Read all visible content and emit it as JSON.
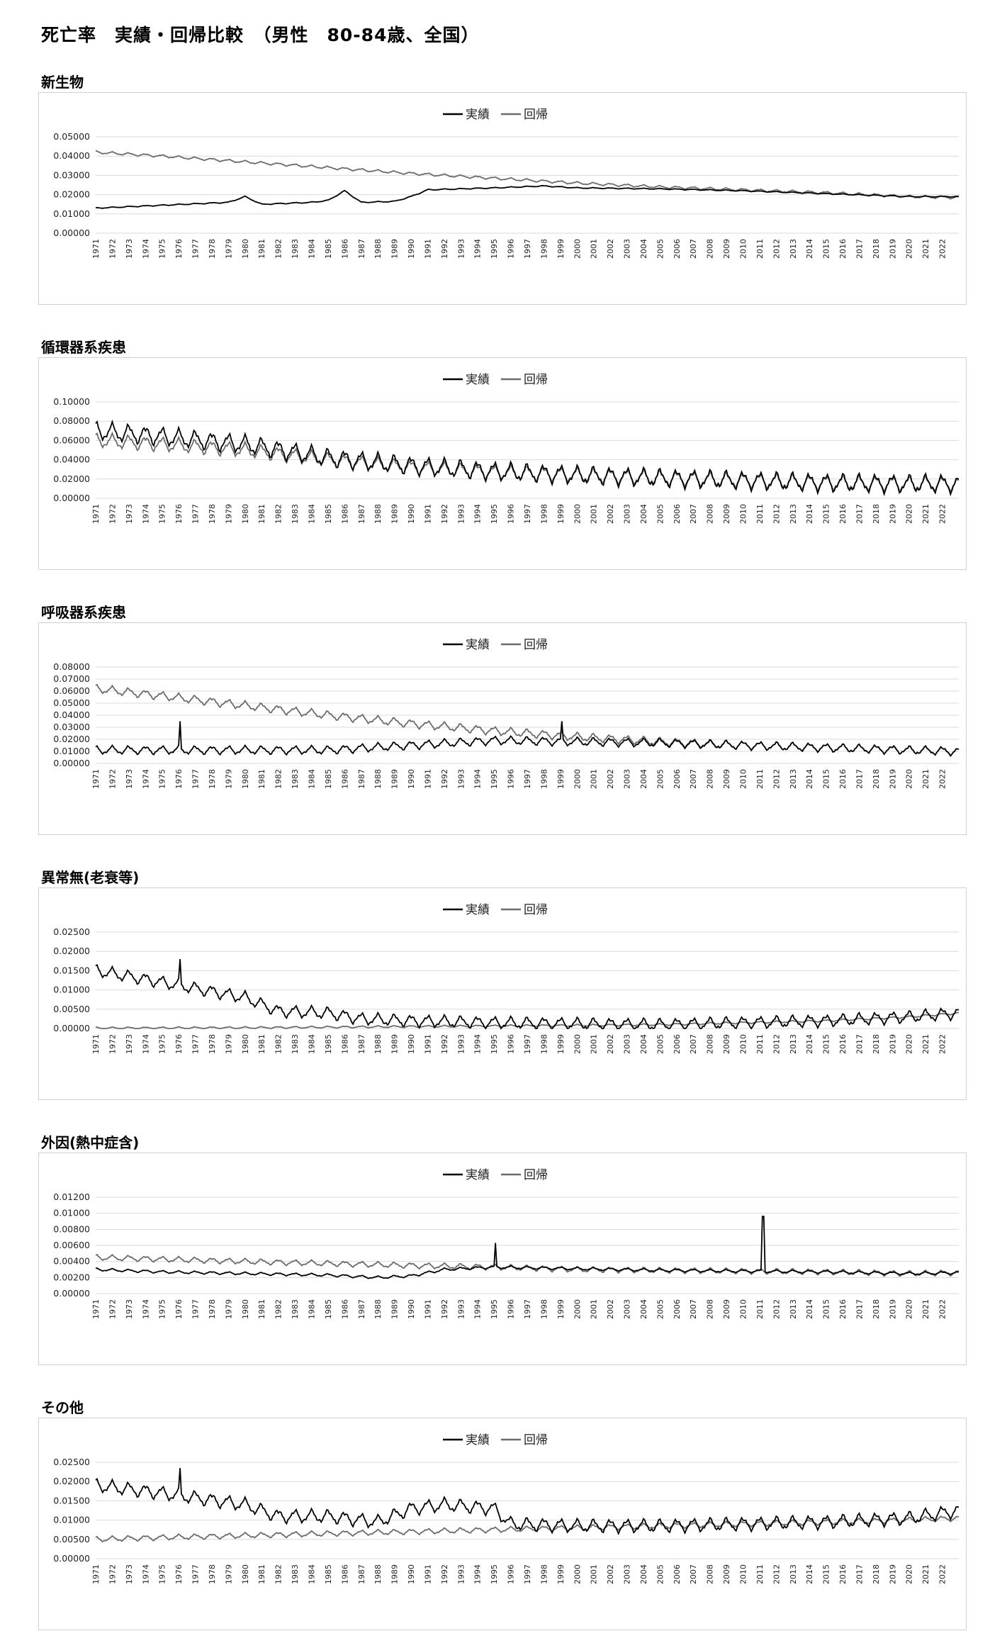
{
  "title": "死亡率　実績・回帰比較　（男性　80-84歳、全国）",
  "legend": {
    "actual": "実績",
    "regression": "回帰"
  },
  "colors": {
    "actual": "#000000",
    "regression": "#6b6b6b",
    "grid": "#d9d9d9"
  },
  "x_years": [
    "1971",
    "1972",
    "1973",
    "1974",
    "1975",
    "1976",
    "1977",
    "1978",
    "1979",
    "1980",
    "1981",
    "1982",
    "1983",
    "1984",
    "1985",
    "1986",
    "1987",
    "1988",
    "1989",
    "1990",
    "1991",
    "1992",
    "1993",
    "1994",
    "1995",
    "1996",
    "1997",
    "1998",
    "1999",
    "2000",
    "2001",
    "2002",
    "2003",
    "2004",
    "2005",
    "2006",
    "2007",
    "2008",
    "2009",
    "2010",
    "2011",
    "2012",
    "2013",
    "2014",
    "2015",
    "2016",
    "2017",
    "2018",
    "2019",
    "2020",
    "2021",
    "2022"
  ],
  "chart_data": [
    {
      "type": "line",
      "title": "新生物",
      "y_ticks": [
        "0.00000",
        "0.01000",
        "0.02000",
        "0.03000",
        "0.04000",
        "0.05000"
      ],
      "ylim": [
        0,
        0.05
      ],
      "seasonal_amp": {
        "actual": 0.0003,
        "regression": 0.0008
      },
      "spikes": [],
      "series": [
        {
          "name": "実績",
          "x": [
            1971,
            1975,
            1979,
            1980,
            1981,
            1984,
            1985,
            1986,
            1987,
            1989,
            1990,
            1991,
            1995,
            1998,
            2000,
            2005,
            2010,
            2015,
            2020,
            2023
          ],
          "values": [
            0.013,
            0.0145,
            0.016,
            0.019,
            0.015,
            0.016,
            0.017,
            0.022,
            0.016,
            0.0165,
            0.019,
            0.0225,
            0.0235,
            0.0245,
            0.0235,
            0.023,
            0.022,
            0.0205,
            0.019,
            0.019
          ]
        },
        {
          "name": "回帰",
          "x": [
            1971,
            1975,
            1980,
            1985,
            1990,
            1995,
            2000,
            2005,
            2010,
            2015,
            2020,
            2023
          ],
          "values": [
            0.042,
            0.04,
            0.037,
            0.034,
            0.031,
            0.0285,
            0.026,
            0.024,
            0.0225,
            0.021,
            0.019,
            0.0185
          ]
        }
      ]
    },
    {
      "type": "line",
      "title": "循環器系疾患",
      "y_ticks": [
        "0.00000",
        "0.02000",
        "0.04000",
        "0.06000",
        "0.08000",
        "0.10000"
      ],
      "ylim": [
        0,
        0.1
      ],
      "seasonal_amp": {
        "actual": 0.011,
        "regression": 0.0085
      },
      "spikes": [],
      "series": [
        {
          "name": "実績",
          "x": [
            1971,
            1975,
            1980,
            1985,
            1990,
            1995,
            2000,
            2005,
            2010,
            2015,
            2020,
            2023
          ],
          "values": [
            0.07,
            0.064,
            0.056,
            0.042,
            0.034,
            0.028,
            0.024,
            0.021,
            0.0185,
            0.016,
            0.015,
            0.015
          ]
        },
        {
          "name": "回帰",
          "x": [
            1971,
            1975,
            1980,
            1985,
            1990,
            1995,
            2000,
            2005,
            2010,
            2015,
            2020,
            2023
          ],
          "values": [
            0.06,
            0.056,
            0.05,
            0.04,
            0.032,
            0.027,
            0.024,
            0.021,
            0.0185,
            0.016,
            0.015,
            0.015
          ]
        }
      ]
    },
    {
      "type": "line",
      "title": "呼吸器系疾患",
      "y_ticks": [
        "0.00000",
        "0.01000",
        "0.02000",
        "0.03000",
        "0.04000",
        "0.05000",
        "0.06000",
        "0.07000",
        "0.08000"
      ],
      "ylim": [
        0,
        0.08
      ],
      "seasonal_amp": {
        "actual": 0.004,
        "regression": 0.004
      },
      "spikes": [
        {
          "series": 0,
          "year": 1976.1,
          "value": 0.035
        },
        {
          "series": 0,
          "year": 1999.1,
          "value": 0.035
        }
      ],
      "series": [
        {
          "name": "実績",
          "x": [
            1971,
            1980,
            1985,
            1990,
            1995,
            2000,
            2005,
            2010,
            2015,
            2020,
            2023
          ],
          "values": [
            0.011,
            0.011,
            0.011,
            0.015,
            0.019,
            0.018,
            0.017,
            0.015,
            0.013,
            0.011,
            0.01
          ]
        },
        {
          "name": "回帰",
          "x": [
            1971,
            1975,
            1980,
            1985,
            1990,
            1995,
            2000,
            2005,
            2010,
            2015,
            2020,
            2023
          ],
          "values": [
            0.062,
            0.056,
            0.048,
            0.04,
            0.033,
            0.027,
            0.022,
            0.018,
            0.015,
            0.013,
            0.011,
            0.01
          ]
        }
      ]
    },
    {
      "type": "line",
      "title": "異常無(老衰等)",
      "y_ticks": [
        "0.00000",
        "0.00500",
        "0.01000",
        "0.01500",
        "0.02000",
        "0.02500"
      ],
      "ylim": [
        0,
        0.025
      ],
      "seasonal_amp": {
        "actual": 0.0018,
        "regression": 0.0003
      },
      "spikes": [
        {
          "series": 0,
          "year": 1976.1,
          "value": 0.018
        }
      ],
      "series": [
        {
          "name": "実績",
          "x": [
            1971,
            1975,
            1980,
            1982,
            1985,
            1987,
            1990,
            1995,
            2000,
            2005,
            2010,
            2015,
            2020,
            2023
          ],
          "values": [
            0.015,
            0.012,
            0.008,
            0.0045,
            0.004,
            0.0025,
            0.002,
            0.0015,
            0.0012,
            0.001,
            0.0015,
            0.002,
            0.003,
            0.004
          ]
        },
        {
          "name": "回帰",
          "x": [
            1971,
            1980,
            1990,
            2000,
            2005,
            2010,
            2015,
            2020,
            2023
          ],
          "values": [
            0.0001,
            0.0002,
            0.0005,
            0.0008,
            0.001,
            0.0015,
            0.002,
            0.003,
            0.004
          ]
        }
      ]
    },
    {
      "type": "line",
      "title": "外因(熱中症含)",
      "y_ticks": [
        "0.00000",
        "0.00200",
        "0.00400",
        "0.00600",
        "0.00800",
        "0.01000",
        "0.01200"
      ],
      "ylim": [
        0,
        0.012
      ],
      "seasonal_amp": {
        "actual": 0.0002,
        "regression": 0.0004
      },
      "spikes": [
        {
          "series": 0,
          "year": 1995.1,
          "value": 0.0063
        },
        {
          "series": 0,
          "year": 2011.2,
          "value": 0.0096
        }
      ],
      "series": [
        {
          "name": "実績",
          "x": [
            1971,
            1975,
            1980,
            1985,
            1988,
            1990,
            1992,
            1995,
            2000,
            2005,
            2010,
            2015,
            2020,
            2023
          ],
          "values": [
            0.003,
            0.0027,
            0.0025,
            0.0023,
            0.002,
            0.0022,
            0.003,
            0.0033,
            0.0031,
            0.0029,
            0.0028,
            0.0027,
            0.0025,
            0.0026
          ]
        },
        {
          "name": "回帰",
          "x": [
            1971,
            1980,
            1990,
            1995,
            2000,
            2005,
            2010,
            2015,
            2020,
            2023
          ],
          "values": [
            0.0045,
            0.004,
            0.0035,
            0.0033,
            0.003,
            0.0029,
            0.0028,
            0.0027,
            0.0025,
            0.0026
          ]
        }
      ]
    },
    {
      "type": "line",
      "title": "その他",
      "y_ticks": [
        "0.00000",
        "0.00500",
        "0.01000",
        "0.01500",
        "0.02000",
        "0.02500"
      ],
      "ylim": [
        0,
        0.025
      ],
      "seasonal_amp": {
        "actual": 0.002,
        "regression": 0.0008
      },
      "spikes": [
        {
          "series": 0,
          "year": 1976.1,
          "value": 0.0235
        }
      ],
      "series": [
        {
          "name": "実績",
          "x": [
            1971,
            1975,
            1980,
            1982,
            1985,
            1988,
            1990,
            1992,
            1995,
            1996,
            2000,
            2005,
            2010,
            2015,
            2020,
            2023
          ],
          "values": [
            0.019,
            0.017,
            0.014,
            0.011,
            0.011,
            0.0095,
            0.013,
            0.014,
            0.013,
            0.009,
            0.0085,
            0.0085,
            0.009,
            0.0095,
            0.0105,
            0.0125
          ]
        },
        {
          "name": "回帰",
          "x": [
            1971,
            1975,
            1980,
            1985,
            1990,
            1995,
            2000,
            2005,
            2010,
            2015,
            2020,
            2023
          ],
          "values": [
            0.005,
            0.0055,
            0.006,
            0.0065,
            0.007,
            0.0075,
            0.008,
            0.0085,
            0.009,
            0.0095,
            0.01,
            0.0105
          ]
        }
      ]
    }
  ]
}
